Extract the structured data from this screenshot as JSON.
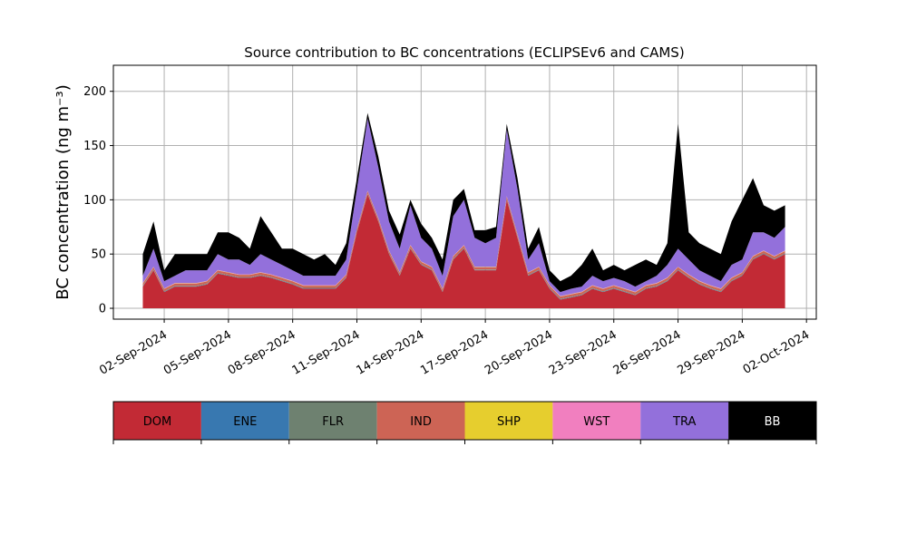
{
  "chart_data": {
    "type": "stacked_area",
    "title": "Source contribution to BC concentrations (ECLIPSEv6 and CAMS)",
    "y_label": "BC concentration (ng m⁻³)",
    "x": [
      "2024-09-01T00:00",
      "2024-09-01T12:00",
      "2024-09-02T00:00",
      "2024-09-02T12:00",
      "2024-09-03T00:00",
      "2024-09-03T12:00",
      "2024-09-04T00:00",
      "2024-09-04T12:00",
      "2024-09-05T00:00",
      "2024-09-05T12:00",
      "2024-09-06T00:00",
      "2024-09-06T12:00",
      "2024-09-07T00:00",
      "2024-09-07T12:00",
      "2024-09-08T00:00",
      "2024-09-08T12:00",
      "2024-09-09T00:00",
      "2024-09-09T12:00",
      "2024-09-10T00:00",
      "2024-09-10T12:00",
      "2024-09-11T00:00",
      "2024-09-11T12:00",
      "2024-09-12T00:00",
      "2024-09-12T12:00",
      "2024-09-13T00:00",
      "2024-09-13T12:00",
      "2024-09-14T00:00",
      "2024-09-14T12:00",
      "2024-09-15T00:00",
      "2024-09-15T12:00",
      "2024-09-16T00:00",
      "2024-09-16T12:00",
      "2024-09-17T00:00",
      "2024-09-17T12:00",
      "2024-09-18T00:00",
      "2024-09-18T12:00",
      "2024-09-19T00:00",
      "2024-09-19T12:00",
      "2024-09-20T00:00",
      "2024-09-20T12:00",
      "2024-09-21T00:00",
      "2024-09-21T12:00",
      "2024-09-22T00:00",
      "2024-09-22T12:00",
      "2024-09-23T00:00",
      "2024-09-23T12:00",
      "2024-09-24T00:00",
      "2024-09-24T12:00",
      "2024-09-25T00:00",
      "2024-09-25T12:00",
      "2024-09-26T00:00",
      "2024-09-26T12:00",
      "2024-09-27T00:00",
      "2024-09-27T12:00",
      "2024-09-28T00:00",
      "2024-09-28T12:00",
      "2024-09-29T00:00",
      "2024-09-29T12:00",
      "2024-09-30T00:00",
      "2024-09-30T12:00",
      "2024-10-01T00:00"
    ],
    "series": [
      {
        "name": "DOM",
        "color": "#c22a35",
        "values": [
          20,
          35,
          15,
          20,
          20,
          20,
          22,
          32,
          30,
          28,
          28,
          30,
          28,
          25,
          22,
          18,
          18,
          18,
          18,
          28,
          70,
          105,
          80,
          50,
          30,
          55,
          40,
          35,
          15,
          45,
          55,
          35,
          35,
          35,
          100,
          65,
          30,
          35,
          18,
          8,
          10,
          12,
          18,
          15,
          18,
          15,
          12,
          18,
          20,
          25,
          35,
          28,
          22,
          18,
          15,
          25,
          30,
          45,
          50,
          45,
          50
        ]
      },
      {
        "name": "ENE",
        "color": "#3878b0",
        "values": [
          0.3,
          0.3,
          0.3,
          0.3,
          0.3,
          0.3,
          0.3,
          0.3,
          0.3,
          0.3,
          0.3,
          0.3,
          0.3,
          0.3,
          0.3,
          0.3,
          0.3,
          0.3,
          0.3,
          0.3,
          0.3,
          0.3,
          0.3,
          0.3,
          0.3,
          0.3,
          0.3,
          0.3,
          0.3,
          0.3,
          0.3,
          0.3,
          0.3,
          0.3,
          0.3,
          0.3,
          0.3,
          0.3,
          0.3,
          0.3,
          0.3,
          0.3,
          0.3,
          0.3,
          0.3,
          0.3,
          0.3,
          0.3,
          0.3,
          0.3,
          0.3,
          0.3,
          0.3,
          0.3,
          0.3,
          0.3,
          0.3,
          0.3,
          0.3,
          0.3,
          0.3
        ]
      },
      {
        "name": "FLR",
        "color": "#6e8170",
        "values": [
          0.5,
          0.5,
          0.5,
          0.5,
          0.5,
          0.5,
          0.5,
          0.5,
          0.5,
          0.5,
          0.5,
          0.5,
          0.5,
          0.5,
          0.5,
          0.5,
          0.5,
          0.5,
          0.5,
          0.5,
          0.5,
          0.5,
          0.5,
          0.5,
          0.5,
          0.5,
          0.5,
          0.5,
          0.5,
          0.5,
          0.5,
          0.5,
          0.5,
          0.5,
          0.5,
          0.5,
          0.5,
          0.5,
          0.5,
          0.5,
          0.5,
          0.5,
          0.5,
          0.5,
          0.5,
          0.5,
          0.5,
          0.5,
          0.5,
          0.5,
          0.5,
          0.5,
          0.5,
          0.5,
          0.5,
          0.5,
          0.5,
          0.5,
          0.5,
          0.5,
          0.5
        ]
      },
      {
        "name": "IND",
        "color": "#cd6455",
        "values": [
          2,
          2,
          2,
          2,
          2,
          2,
          2,
          2,
          2,
          2,
          2,
          2,
          2,
          2,
          2,
          2,
          2,
          2,
          2,
          2,
          2,
          2,
          2,
          2,
          2,
          2,
          2,
          2,
          2,
          2,
          2,
          2,
          2,
          2,
          2,
          2,
          2,
          2,
          2,
          2,
          2,
          2,
          2,
          2,
          2,
          2,
          2,
          2,
          2,
          2,
          2,
          2,
          2,
          2,
          2,
          2,
          2,
          2,
          2,
          2,
          2
        ]
      },
      {
        "name": "SHP",
        "color": "#e6ce2e",
        "values": [
          0.2,
          0.2,
          0.2,
          0.2,
          0.2,
          0.2,
          0.2,
          0.2,
          0.2,
          0.2,
          0.2,
          0.2,
          0.2,
          0.2,
          0.2,
          0.2,
          0.2,
          0.2,
          0.2,
          0.2,
          0.2,
          0.2,
          0.2,
          0.2,
          0.2,
          0.2,
          0.2,
          0.2,
          0.2,
          0.2,
          0.2,
          0.2,
          0.2,
          0.2,
          0.2,
          0.2,
          0.2,
          0.2,
          0.2,
          0.2,
          0.2,
          0.2,
          0.2,
          0.2,
          0.2,
          0.2,
          0.2,
          0.2,
          0.2,
          0.2,
          0.2,
          0.2,
          0.2,
          0.2,
          0.2,
          0.2,
          0.2,
          0.2,
          0.2,
          0.2,
          0.2
        ]
      },
      {
        "name": "WST",
        "color": "#f17fbf",
        "values": [
          0.3,
          0.3,
          0.3,
          0.3,
          0.3,
          0.3,
          0.3,
          0.3,
          0.3,
          0.3,
          0.3,
          0.3,
          0.3,
          0.3,
          0.3,
          0.3,
          0.3,
          0.3,
          0.3,
          0.3,
          0.3,
          0.3,
          0.3,
          0.3,
          0.3,
          0.3,
          0.3,
          0.3,
          0.3,
          0.3,
          0.3,
          0.3,
          0.3,
          0.3,
          0.3,
          0.3,
          0.3,
          0.3,
          0.3,
          0.3,
          0.3,
          0.3,
          0.3,
          0.3,
          0.3,
          0.3,
          0.3,
          0.3,
          0.3,
          0.3,
          0.3,
          0.3,
          0.3,
          0.3,
          0.3,
          0.3,
          0.3,
          0.3,
          0.3,
          0.3,
          0.3
        ]
      },
      {
        "name": "TRA",
        "color": "#9370db",
        "values": [
          6.7,
          16.7,
          6.7,
          6.7,
          11.7,
          11.7,
          9.7,
          14.7,
          11.7,
          13.7,
          8.7,
          16.7,
          13.7,
          11.7,
          9.7,
          8.7,
          8.7,
          8.7,
          8.7,
          13.7,
          36.7,
          66.7,
          46.7,
          26.7,
          21.7,
          36.7,
          21.7,
          16.7,
          11.7,
          36.7,
          41.7,
          26.7,
          21.7,
          26.7,
          61.7,
          41.7,
          11.7,
          21.7,
          3.7,
          3.7,
          4.7,
          4.7,
          8.7,
          6.7,
          6.7,
          6.7,
          4.7,
          3.7,
          6.7,
          11.7,
          16.7,
          13.7,
          9.7,
          8.7,
          6.7,
          11.7,
          11.7,
          21.7,
          16.7,
          16.7,
          21.7
        ]
      },
      {
        "name": "BB",
        "color": "#000000",
        "values": [
          20,
          25,
          10,
          20,
          15,
          15,
          15,
          20,
          25,
          20,
          15,
          35,
          25,
          15,
          20,
          20,
          15,
          20,
          10,
          15,
          10,
          5,
          10,
          10,
          13,
          5,
          13,
          10,
          15,
          15,
          10,
          7,
          12,
          10,
          5,
          10,
          10,
          15,
          10,
          10,
          12,
          20,
          25,
          10,
          12,
          10,
          20,
          20,
          10,
          20,
          115,
          25,
          25,
          25,
          25,
          40,
          55,
          50,
          25,
          25,
          20
        ]
      }
    ],
    "xlim": [
      "2024-08-30T15:00",
      "2024-10-02T11:00"
    ],
    "xticks": [
      {
        "value": "2024-09-02T00:00",
        "label": "02-Sep-2024"
      },
      {
        "value": "2024-09-05T00:00",
        "label": "05-Sep-2024"
      },
      {
        "value": "2024-09-08T00:00",
        "label": "08-Sep-2024"
      },
      {
        "value": "2024-09-11T00:00",
        "label": "11-Sep-2024"
      },
      {
        "value": "2024-09-14T00:00",
        "label": "14-Sep-2024"
      },
      {
        "value": "2024-09-17T00:00",
        "label": "17-Sep-2024"
      },
      {
        "value": "2024-09-20T00:00",
        "label": "20-Sep-2024"
      },
      {
        "value": "2024-09-23T00:00",
        "label": "23-Sep-2024"
      },
      {
        "value": "2024-09-26T00:00",
        "label": "26-Sep-2024"
      },
      {
        "value": "2024-09-29T00:00",
        "label": "29-Sep-2024"
      },
      {
        "value": "2024-10-02T00:00",
        "label": "02-Oct-2024"
      }
    ],
    "ylim": [
      -10,
      224
    ],
    "yticks": [
      0,
      50,
      100,
      150,
      200
    ],
    "grid": true
  }
}
